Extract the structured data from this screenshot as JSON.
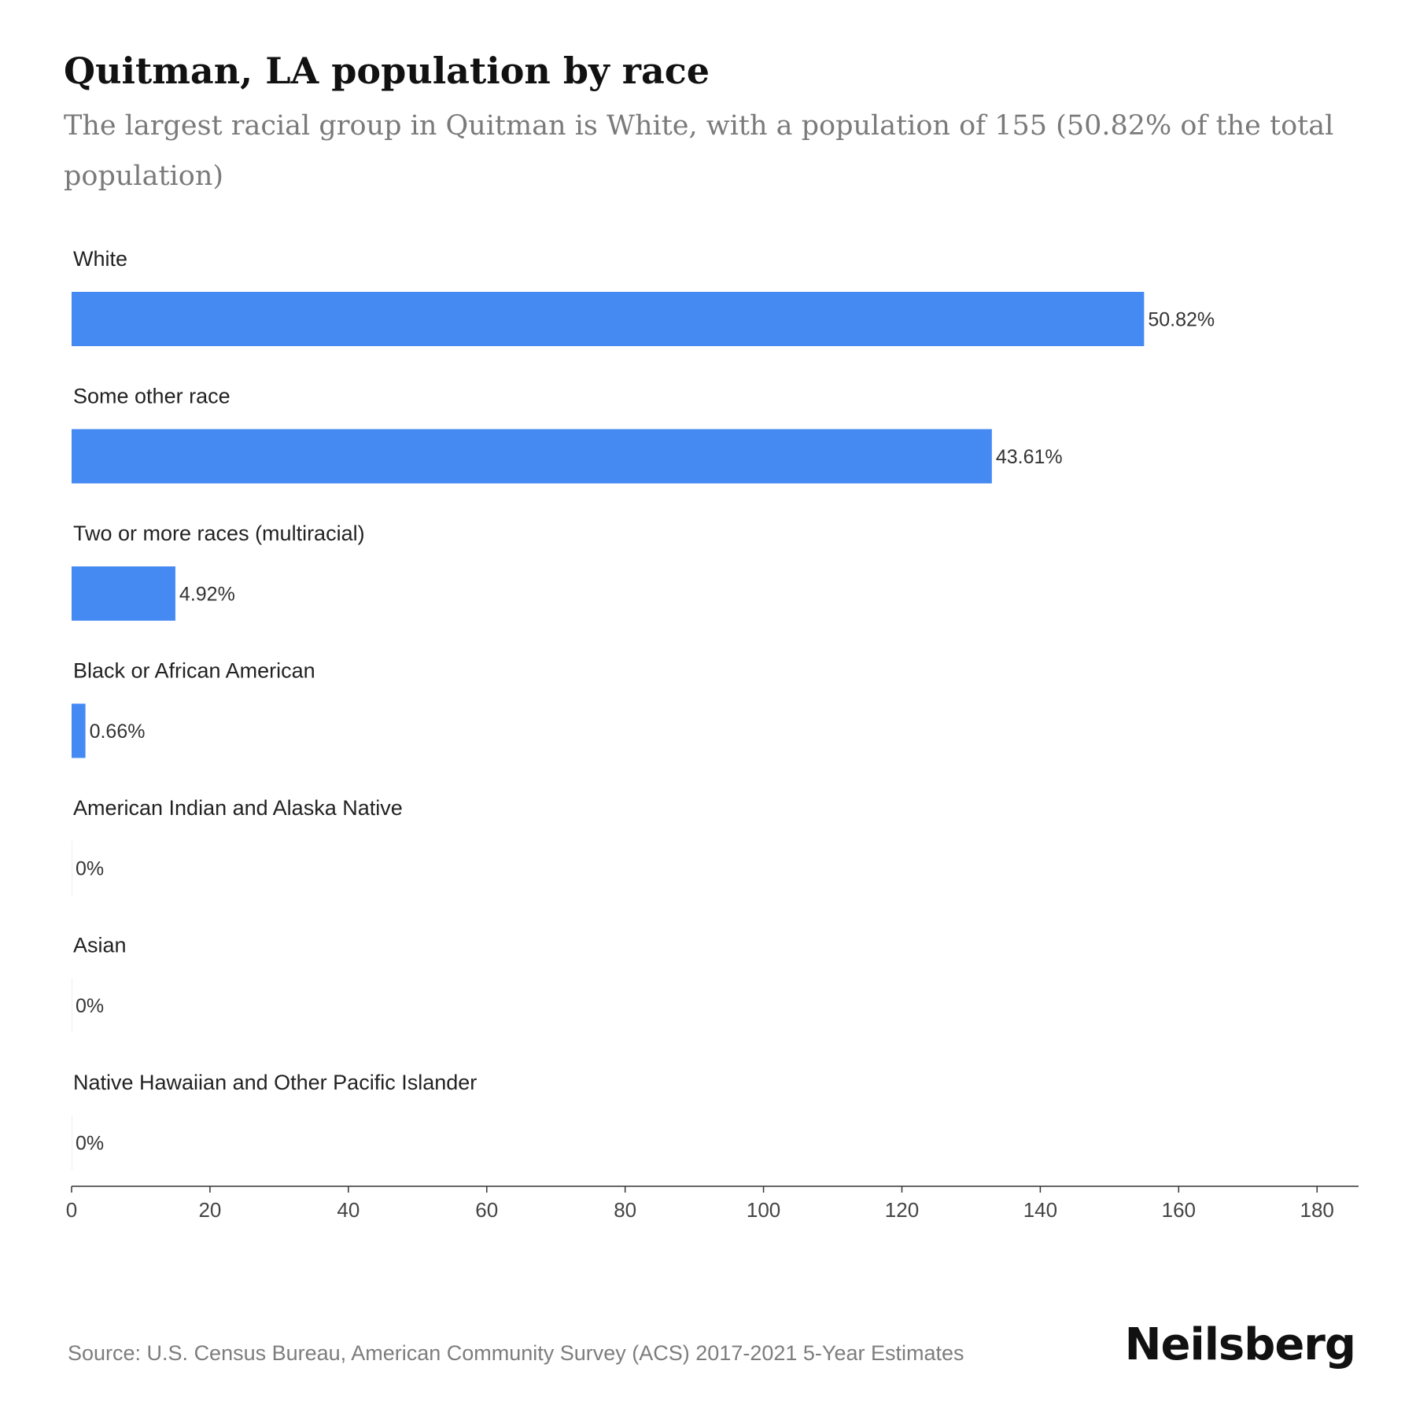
{
  "header": {
    "title": "Quitman, LA population by race",
    "subtitle": "The largest racial group in Quitman is White, with a population of 155 (50.82% of the total population)"
  },
  "chart_data": {
    "type": "bar",
    "orientation": "horizontal",
    "categories": [
      "White",
      "Some other race",
      "Two or more races (multiracial)",
      "Black or African American",
      "American Indian and Alaska Native",
      "Asian",
      "Native Hawaiian and Other Pacific Islander"
    ],
    "values": [
      155,
      133,
      15,
      2,
      0,
      0,
      0
    ],
    "value_labels": [
      "50.82%",
      "43.61%",
      "4.92%",
      "0.66%",
      "0%",
      "0%",
      "0%"
    ],
    "xlim": [
      0,
      186
    ],
    "xticks": [
      0,
      20,
      40,
      60,
      80,
      100,
      120,
      140,
      160,
      180
    ],
    "grid": false,
    "legend": "none",
    "bar_color": "#4589f3"
  },
  "footer": {
    "source": "Source: U.S. Census Bureau, American Community Survey (ACS) 2017-2021 5-Year Estimates",
    "brand": "Neilsberg"
  }
}
